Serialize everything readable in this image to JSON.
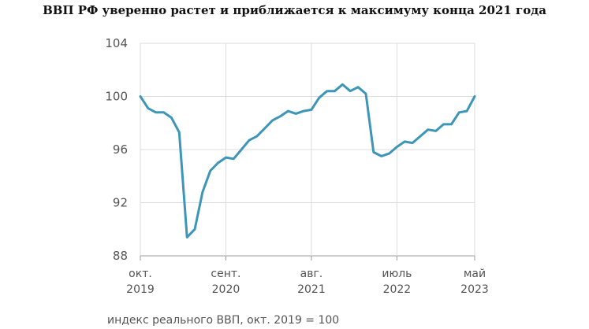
{
  "chart_data": {
    "type": "line",
    "title": "ВВП РФ уверенно растет и приближается к максимуму конца 2021 года",
    "note": "индекс реального ВВП, окт. 2019 = 100",
    "ylim": [
      88,
      104
    ],
    "y_ticks": [
      88,
      92,
      96,
      100,
      104
    ],
    "grid": true,
    "x_tick_labels": [
      {
        "top": "окт.",
        "bottom": "2019",
        "index": 0
      },
      {
        "top": "сент.",
        "bottom": "2020",
        "index": 11
      },
      {
        "top": "авг.",
        "bottom": "2021",
        "index": 22
      },
      {
        "top": "июль",
        "bottom": "2022",
        "index": 33
      },
      {
        "top": "май",
        "bottom": "2023",
        "index": 43
      }
    ],
    "line_color": "#3d95b8",
    "series": [
      {
        "values": [
          100.0,
          99.1,
          98.8,
          98.8,
          98.4,
          97.3,
          89.4,
          90.0,
          92.8,
          94.4,
          95.0,
          95.4,
          95.3,
          96.0,
          96.7,
          97.0,
          97.6,
          98.2,
          98.5,
          98.9,
          98.7,
          98.9,
          99.0,
          99.9,
          100.4,
          100.4,
          100.9,
          100.4,
          100.7,
          100.2,
          95.8,
          95.5,
          95.7,
          96.2,
          96.6,
          96.5,
          97.0,
          97.5,
          97.4,
          97.9,
          97.9,
          98.8,
          98.9,
          100.0
        ]
      }
    ]
  }
}
